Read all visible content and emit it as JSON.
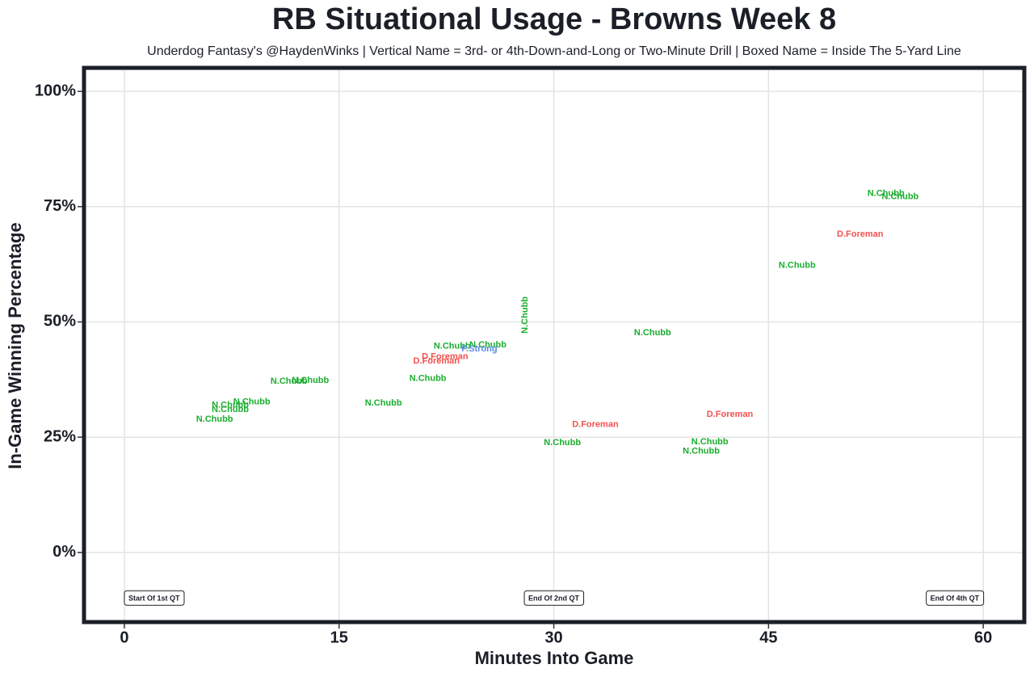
{
  "chart_data": {
    "type": "scatter",
    "title": "RB Situational Usage - Browns Week 8",
    "subtitle": "Underdog Fantasy's @HaydenWinks | Vertical Name = 3rd- or 4th-Down-and-Long or Two-Minute Drill | Boxed Name = Inside The 5-Yard Line",
    "x_label": "Minutes Into Game",
    "y_label": "In-Game Winning Percentage",
    "xlim": [
      -2.82,
      62.87
    ],
    "ylim": [
      -15.1,
      105.1
    ],
    "xticks": [
      0,
      15,
      30,
      45,
      60
    ],
    "yticks": [
      {
        "value": 0,
        "label": "0%"
      },
      {
        "value": 25,
        "label": "25%"
      },
      {
        "value": 50,
        "label": "50%"
      },
      {
        "value": 75,
        "label": "75%"
      },
      {
        "value": 100,
        "label": "100%"
      }
    ],
    "grid": true,
    "series": [
      {
        "name": "N.Chubb",
        "color": "#1aae2e",
        "x": [
          53.2,
          54.2,
          47.0,
          28.0,
          36.9,
          22.9,
          25.4,
          13.0,
          11.5,
          21.2,
          18.1,
          8.9,
          7.4,
          7.4,
          6.3,
          30.6,
          40.9,
          40.3
        ],
        "y": [
          77.8,
          77.1,
          62.2,
          51.5,
          47.6,
          44.7,
          45.0,
          37.3,
          37.1,
          37.7,
          32.4,
          32.6,
          31.9,
          31.0,
          28.9,
          23.8,
          24.0,
          21.9
        ],
        "vertical_points": [
          3
        ]
      },
      {
        "name": "D.Foreman",
        "color": "#f0514e",
        "x": [
          51.4,
          22.4,
          21.8,
          32.9,
          42.3
        ],
        "y": [
          69.0,
          42.4,
          41.5,
          27.7,
          29.9
        ],
        "vertical_points": []
      },
      {
        "name": "P.Strong",
        "color": "#5b8ce8",
        "x": [
          24.8
        ],
        "y": [
          44.1
        ],
        "vertical_points": []
      }
    ],
    "annotations": [
      {
        "text": "Start Of 1st QT",
        "x": 0,
        "y": -10,
        "anchor": "start"
      },
      {
        "text": "End Of 2nd QT",
        "x": 30,
        "y": -10,
        "anchor": "middle"
      },
      {
        "text": "End Of 4th QT",
        "x": 60,
        "y": -10,
        "anchor": "end"
      }
    ]
  }
}
